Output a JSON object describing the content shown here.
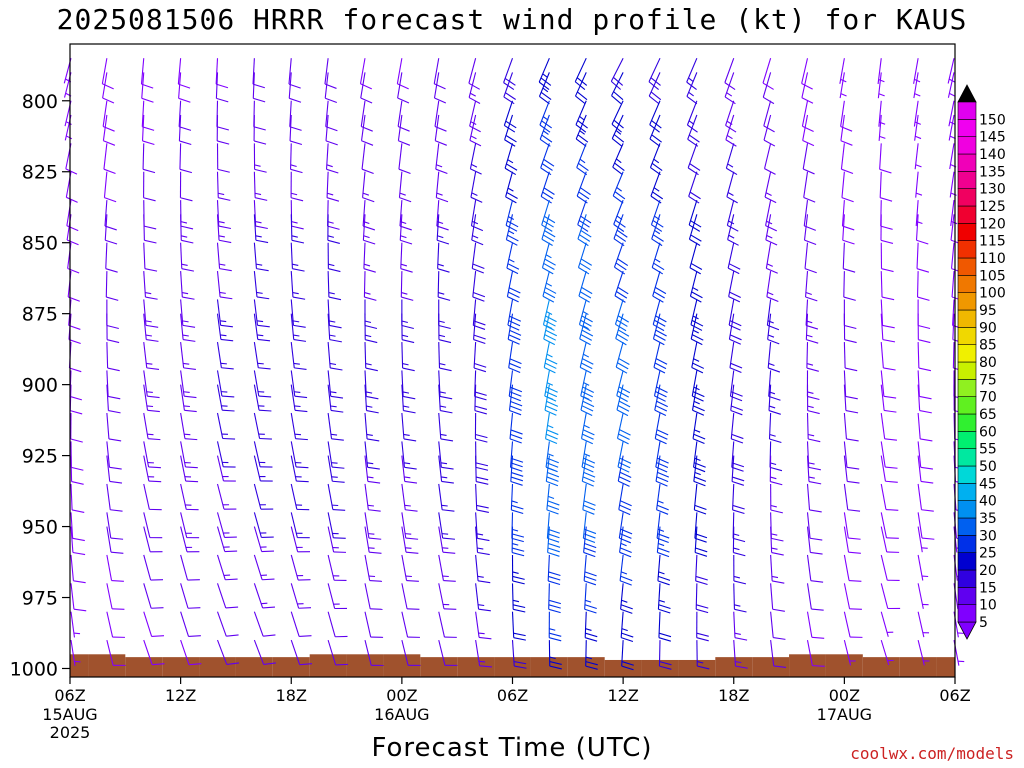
{
  "title": "2025081506 HRRR forecast wind profile (kt) for KAUS",
  "credit": "coolwx.com/models",
  "chart_data": {
    "type": "wind-barb-profile",
    "title": "2025081506 HRRR forecast wind profile (kt) for KAUS",
    "xlabel": "Forecast Time (UTC)",
    "ylabel": "",
    "y_ticks": [
      "800",
      "825",
      "850",
      "875",
      "900",
      "925",
      "950",
      "975",
      "1000"
    ],
    "y_tick_values": [
      800,
      825,
      850,
      875,
      900,
      925,
      950,
      975,
      1000
    ],
    "ylim_hPa": [
      780,
      1003
    ],
    "x_ticks": [
      {
        "hour": 0,
        "label": "06Z",
        "sub": "15AUG",
        "sub2": "2025"
      },
      {
        "hour": 6,
        "label": "12Z",
        "sub": "",
        "sub2": ""
      },
      {
        "hour": 12,
        "label": "18Z",
        "sub": "",
        "sub2": ""
      },
      {
        "hour": 18,
        "label": "00Z",
        "sub": "16AUG",
        "sub2": ""
      },
      {
        "hour": 24,
        "label": "06Z",
        "sub": "",
        "sub2": ""
      },
      {
        "hour": 30,
        "label": "12Z",
        "sub": "",
        "sub2": ""
      },
      {
        "hour": 36,
        "label": "18Z",
        "sub": "",
        "sub2": ""
      },
      {
        "hour": 42,
        "label": "00Z",
        "sub": "17AUG",
        "sub2": ""
      },
      {
        "hour": 48,
        "label": "06Z",
        "sub": "",
        "sub2": ""
      }
    ],
    "xlim_hours": [
      0,
      48
    ],
    "barb_hours": [
      0,
      2,
      4,
      6,
      8,
      10,
      12,
      14,
      16,
      18,
      20,
      22,
      24,
      26,
      28,
      30,
      32,
      34,
      36,
      38,
      40,
      42,
      44,
      46,
      48
    ],
    "barb_levels_hPa": [
      785,
      790,
      800,
      805,
      815,
      825,
      835,
      840,
      850,
      860,
      870,
      875,
      885,
      895,
      900,
      910,
      920,
      925,
      935,
      945,
      950,
      960,
      970,
      980,
      990,
      1000
    ],
    "wind_speed_kt_by_hour": [
      8,
      10,
      11,
      12,
      13,
      14,
      14,
      14,
      13,
      13,
      14,
      16,
      24,
      30,
      28,
      26,
      24,
      20,
      16,
      13,
      11,
      9,
      8,
      7,
      7
    ],
    "wind_from_deg_by_hour": [
      170,
      165,
      160,
      160,
      158,
      158,
      160,
      162,
      165,
      165,
      165,
      170,
      175,
      178,
      180,
      182,
      180,
      178,
      175,
      172,
      168,
      165,
      162,
      165,
      168
    ],
    "surface_pressure_hPa_by_hour": [
      995,
      995,
      996,
      996,
      996,
      996,
      996,
      995,
      995,
      995,
      996,
      996,
      996,
      996,
      996,
      997,
      997,
      997,
      996,
      996,
      995,
      995,
      996,
      996,
      996
    ],
    "colorbar": {
      "labels": [
        "5",
        "10",
        "15",
        "20",
        "25",
        "30",
        "35",
        "40",
        "45",
        "50",
        "55",
        "60",
        "65",
        "70",
        "75",
        "80",
        "85",
        "90",
        "95",
        "100",
        "105",
        "110",
        "115",
        "120",
        "125",
        "130",
        "135",
        "140",
        "145",
        "150"
      ],
      "colors": [
        "#8000ff",
        "#6000f0",
        "#3000e0",
        "#0000d0",
        "#0030e8",
        "#0060f0",
        "#0090f0",
        "#00b0f0",
        "#00d8d8",
        "#00e8a0",
        "#00f070",
        "#30f030",
        "#60f020",
        "#90f020",
        "#c8f000",
        "#f0f000",
        "#f0d800",
        "#f0b800",
        "#f09800",
        "#f07800",
        "#f05800",
        "#f03000",
        "#f00000",
        "#f00030",
        "#f00060",
        "#f00090",
        "#f000b8",
        "#f000e0",
        "#f000f0",
        "#e000f0"
      ],
      "max_triangle_color": "#000000",
      "min_triangle_color": "#8000ff"
    },
    "terrain_color": "#a0522d"
  }
}
